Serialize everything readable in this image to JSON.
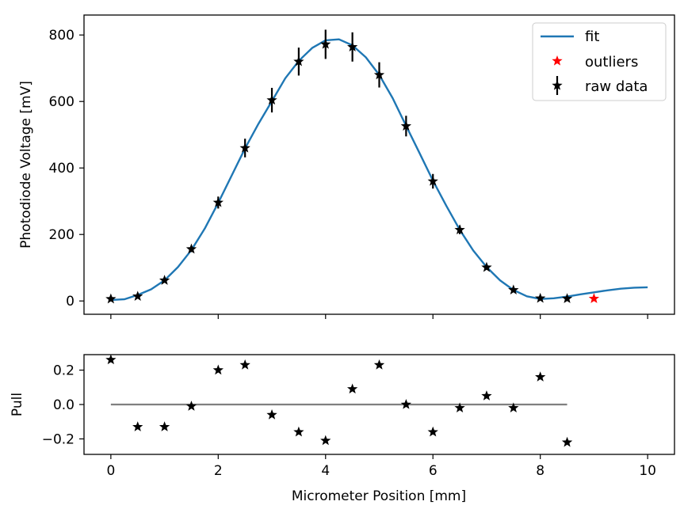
{
  "chart_data": [
    {
      "type": "line",
      "panel": "main",
      "xlabel": "",
      "ylabel": "Photodiode Voltage [mV]",
      "xlim": [
        -0.5,
        10.5
      ],
      "ylim": [
        -40,
        860
      ],
      "xticks": [
        0,
        2,
        4,
        6,
        8,
        10
      ],
      "yticks": [
        0,
        200,
        400,
        600,
        800
      ],
      "grid": false,
      "legend": {
        "placement": "top-right",
        "entries": [
          "fit",
          "outliers",
          "raw data"
        ]
      },
      "series": [
        {
          "name": "fit",
          "kind": "line",
          "color": "#1f77b4",
          "x": [
            0,
            0.25,
            0.5,
            0.75,
            1,
            1.25,
            1.5,
            1.75,
            2,
            2.25,
            2.5,
            2.75,
            3,
            3.25,
            3.5,
            3.75,
            4,
            4.25,
            4.5,
            4.75,
            5,
            5.25,
            5.5,
            5.75,
            6,
            6.25,
            6.5,
            6.75,
            7,
            7.25,
            7.5,
            7.75,
            8,
            8.25,
            8.5,
            8.75,
            9,
            9.25,
            9.5,
            9.75,
            10
          ],
          "y": [
            3,
            5,
            18,
            35,
            62,
            102,
            153,
            218,
            295,
            377,
            459,
            533,
            601,
            670,
            722,
            761,
            784,
            787,
            769,
            733,
            680,
            610,
            527,
            445,
            362,
            286,
            214,
            152,
            102,
            62,
            33,
            14,
            6,
            8,
            13,
            20,
            26,
            32,
            37,
            40,
            41
          ]
        },
        {
          "name": "outliers",
          "kind": "markers",
          "color": "#ff0000",
          "x": [
            9
          ],
          "y": [
            7
          ]
        },
        {
          "name": "raw data",
          "kind": "errorbar",
          "color": "#000000",
          "x": [
            0,
            0.5,
            1,
            1.5,
            2,
            2.5,
            3,
            3.5,
            4,
            4.5,
            5,
            5.5,
            6,
            6.5,
            7,
            7.5,
            8,
            8.5
          ],
          "y": [
            6,
            14,
            62,
            156,
            296,
            460,
            604,
            720,
            772,
            764,
            680,
            526,
            360,
            214,
            101,
            33,
            8,
            7
          ],
          "yerr": [
            4,
            5,
            6,
            9,
            18,
            28,
            37,
            42,
            44,
            44,
            38,
            31,
            22,
            13,
            7,
            4,
            4,
            4
          ]
        }
      ]
    },
    {
      "type": "scatter",
      "panel": "residuals",
      "xlabel": "Micrometer Position [mm]",
      "ylabel": "Pull",
      "xlim": [
        -0.5,
        10.5
      ],
      "ylim": [
        -0.29,
        0.29
      ],
      "xticks": [
        0,
        2,
        4,
        6,
        8,
        10
      ],
      "yticks": [
        -0.2,
        0.0,
        0.2
      ],
      "ytick_labels": [
        "−0.2",
        "0.0",
        "0.2"
      ],
      "grid": false,
      "series": [
        {
          "kind": "markers",
          "color": "#000000",
          "x": [
            0,
            0.5,
            1,
            1.5,
            2,
            2.5,
            3,
            3.5,
            4,
            4.5,
            5,
            5.5,
            6,
            6.5,
            7,
            7.5,
            8,
            8.5
          ],
          "y": [
            0.26,
            -0.13,
            -0.13,
            -0.01,
            0.2,
            0.23,
            -0.06,
            -0.16,
            -0.21,
            0.09,
            0.23,
            0.0,
            -0.16,
            -0.02,
            0.05,
            -0.02,
            0.16,
            -0.22
          ]
        },
        {
          "kind": "line",
          "color": "#808080",
          "x": [
            0,
            8.5
          ],
          "y": [
            0,
            0
          ]
        }
      ]
    }
  ]
}
